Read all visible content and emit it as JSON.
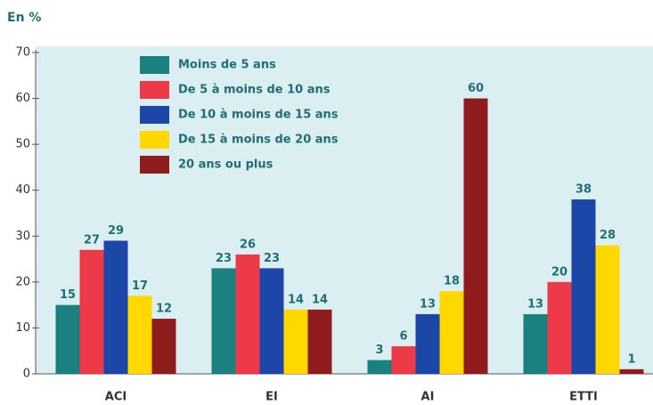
{
  "chart_data": {
    "type": "bar",
    "y_axis_label": "En %",
    "categories": [
      "ACI",
      "EI",
      "AI",
      "ETTI"
    ],
    "series": [
      {
        "name": "Moins de 5 ans",
        "color": "#1a8080",
        "values": [
          15,
          23,
          3,
          13
        ]
      },
      {
        "name": "De 5 à moins de 10 ans",
        "color": "#ee3a48",
        "values": [
          27,
          26,
          6,
          20
        ]
      },
      {
        "name": "De 10 à moins de 15 ans",
        "color": "#1c46a8",
        "values": [
          29,
          23,
          13,
          38
        ]
      },
      {
        "name": "De 15 à moins de 20 ans",
        "color": "#ffd800",
        "values": [
          17,
          14,
          18,
          28
        ]
      },
      {
        "name": "20 ans ou plus",
        "color": "#8e1c1c",
        "values": [
          12,
          14,
          60,
          1
        ]
      }
    ],
    "ylim": [
      0,
      70
    ],
    "yticks": [
      0,
      10,
      20,
      30,
      40,
      50,
      60,
      70
    ],
    "legend": "upper left"
  }
}
